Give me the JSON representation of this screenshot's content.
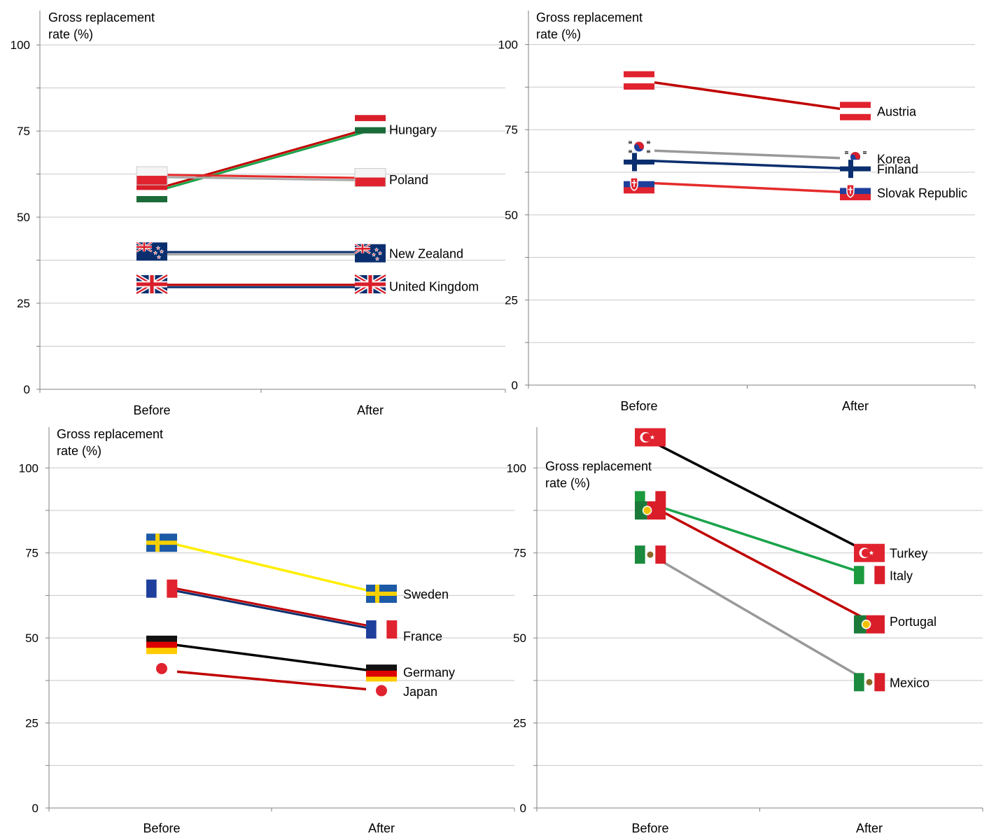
{
  "chart_data": [
    {
      "type": "line",
      "ylabel_lines": [
        "Gross replacement",
        "rate (%)"
      ],
      "categories": [
        "Before",
        "After"
      ],
      "ylim": [
        0,
        110
      ],
      "yticks": [
        0,
        25,
        50,
        75,
        100
      ],
      "grid": true,
      "series": [
        {
          "name": "Hungary",
          "values": [
            57.5,
            75.5
          ],
          "line_colors": [
            "#c00000",
            "#1aa34a"
          ],
          "flag": "hungary-flag",
          "flag_values": [
            57,
            77
          ]
        },
        {
          "name": "Poland",
          "values": [
            62,
            61
          ],
          "line_colors": [
            "#e52b2b",
            "#aaaaaa"
          ],
          "flag": "poland-flag",
          "flag_values": [
            62,
            61.5
          ]
        },
        {
          "name": "New Zealand",
          "values": [
            39.5,
            39.5
          ],
          "line_colors": [
            "#0b2f6e",
            "#aaaaaa"
          ],
          "flag": "new-zealand-flag",
          "flag_values": [
            40,
            39.5
          ]
        },
        {
          "name": "United Kingdom",
          "values": [
            30,
            30
          ],
          "line_colors": [
            "#c00000",
            "#0b2f6e"
          ],
          "flag": "uk-flag",
          "flag_values": [
            30.5,
            30.5
          ]
        }
      ]
    },
    {
      "type": "line",
      "ylabel_lines": [
        "Gross replacement",
        "rate (%)"
      ],
      "categories": [
        "Before",
        "After"
      ],
      "ylim": [
        0,
        110
      ],
      "yticks": [
        0,
        25,
        50,
        75,
        100
      ],
      "grid": true,
      "series": [
        {
          "name": "Austria",
          "values": [
            89.5,
            80.5
          ],
          "line_colors": [
            "#c00000"
          ],
          "flag": "austria-flag",
          "flag_values": [
            89.5,
            80.5
          ]
        },
        {
          "name": "Korea",
          "values": [
            69,
            66.5
          ],
          "line_colors": [
            "#999999"
          ],
          "flag": "korea-flag",
          "flag_values": [
            70,
            67
          ]
        },
        {
          "name": "Finland",
          "values": [
            66,
            63.5
          ],
          "line_colors": [
            "#0b2f6e"
          ],
          "flag": "finland-flag",
          "flag_values": [
            65.5,
            63.5
          ]
        },
        {
          "name": "Slovak Republic",
          "values": [
            59.5,
            56.5
          ],
          "line_colors": [
            "#e52b2b"
          ],
          "flag": "slovakia-flag",
          "flag_values": [
            59,
            57
          ]
        }
      ]
    },
    {
      "type": "line",
      "ylabel_lines": [
        "Gross replacement",
        "rate (%)"
      ],
      "categories": [
        "Before",
        "After"
      ],
      "ylim": [
        0,
        112
      ],
      "yticks": [
        0,
        25,
        50,
        75,
        100
      ],
      "grid": true,
      "series": [
        {
          "name": "Sweden",
          "values": [
            78.5,
            63
          ],
          "line_colors": [
            "#ffee00"
          ],
          "flag": "sweden-flag",
          "flag_values": [
            78,
            63
          ]
        },
        {
          "name": "France",
          "values": [
            65,
            52.5
          ],
          "line_colors": [
            "#c00000",
            "#0b2f6e"
          ],
          "flag": "france-flag",
          "flag_values": [
            64.5,
            52.5
          ]
        },
        {
          "name": "Germany",
          "values": [
            48.5,
            40
          ],
          "line_colors": [
            "#000000"
          ],
          "flag": "germany-flag",
          "flag_values": [
            48,
            39.5
          ]
        },
        {
          "name": "Japan",
          "values": [
            40.5,
            34.5
          ],
          "line_colors": [
            "#c00000"
          ],
          "flag": "japan-flag",
          "flag_values": [
            41,
            34.5
          ]
        }
      ]
    },
    {
      "type": "line",
      "ylabel_lines": [
        "Gross replacement",
        "rate (%)"
      ],
      "categories": [
        "Before",
        "After"
      ],
      "ylim": [
        0,
        112
      ],
      "yticks": [
        0,
        25,
        50,
        75,
        100
      ],
      "grid": true,
      "series": [
        {
          "name": "Turkey",
          "values": [
            108,
            75
          ],
          "line_colors": [
            "#000000"
          ],
          "flag": "turkey-flag",
          "flag_values": [
            109,
            75
          ]
        },
        {
          "name": "Italy",
          "values": [
            89.5,
            68.5
          ],
          "line_colors": [
            "#1aa34a"
          ],
          "flag": "italy-flag",
          "flag_values": [
            90.5,
            68.5
          ]
        },
        {
          "name": "Portugal",
          "values": [
            89,
            55
          ],
          "line_colors": [
            "#c00000"
          ],
          "flag": "portugal-flag",
          "flag_values": [
            87.5,
            54
          ]
        },
        {
          "name": "Mexico",
          "values": [
            74.5,
            37
          ],
          "line_colors": [
            "#999999"
          ],
          "flag": "mexico-flag",
          "flag_values": [
            74.5,
            37
          ]
        }
      ]
    }
  ]
}
